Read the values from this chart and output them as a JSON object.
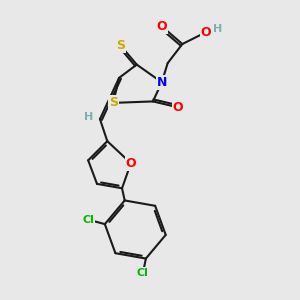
{
  "bg_color": "#e8e8e8",
  "bond_color": "#1a1a1a",
  "bond_width": 1.5,
  "atom_colors": {
    "O": "#ff0000",
    "N": "#0000ff",
    "S": "#ccaa00",
    "Cl": "#00bb00",
    "H": "#7ab0b0",
    "C": "#1a1a1a"
  },
  "font_size": 9,
  "font_size_small": 8
}
